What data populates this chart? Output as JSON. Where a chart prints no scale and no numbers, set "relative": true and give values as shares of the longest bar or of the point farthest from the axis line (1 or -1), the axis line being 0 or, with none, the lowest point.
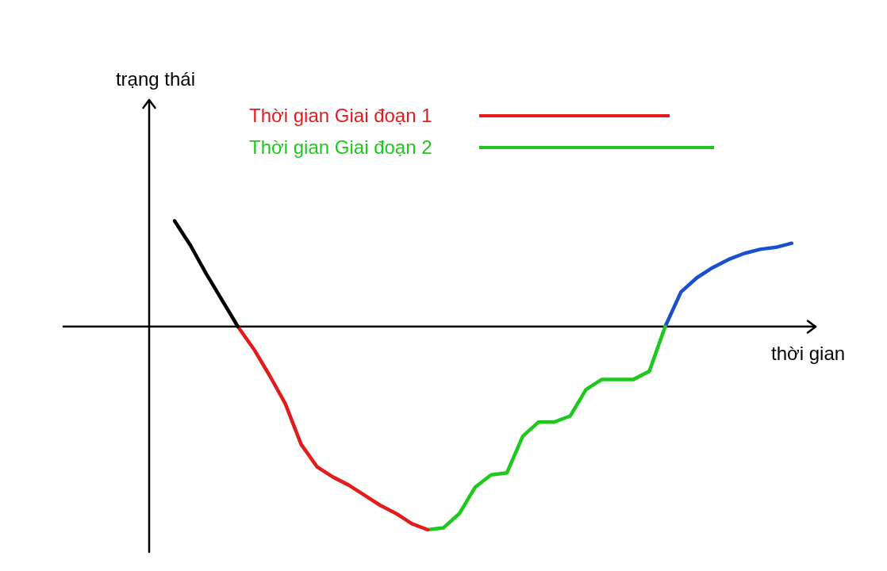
{
  "chart_data": {
    "type": "line",
    "relative": true,
    "xlabel": "thời gian",
    "annotations": [
      "trạng thái"
    ],
    "legend": "top",
    "marker": "none",
    "categories": [
      null,
      null,
      null,
      null,
      null,
      null,
      null,
      null,
      null,
      null,
      null,
      null,
      null,
      null,
      null,
      null,
      null,
      null,
      null,
      null,
      null,
      null,
      null,
      null,
      null,
      null,
      null,
      null,
      null,
      null,
      null,
      null,
      null,
      null,
      null,
      null,
      null,
      null,
      null,
      null
    ],
    "series": [
      {
        "color": "#000000",
        "values": [
          0.52,
          0.4,
          0.26,
          0.13,
          0,
          null,
          null,
          null,
          null,
          null,
          null,
          null,
          null,
          null,
          null,
          null,
          null,
          null,
          null,
          null,
          null,
          null,
          null,
          null,
          null,
          null,
          null,
          null,
          null,
          null,
          null,
          null,
          null,
          null,
          null,
          null,
          null,
          null,
          null,
          null
        ]
      },
      {
        "name": "Thời gian Giai đoạn 1",
        "color": "#e31b1b",
        "values": [
          null,
          null,
          null,
          null,
          0,
          -0.11,
          -0.24,
          -0.38,
          -0.58,
          -0.69,
          -0.74,
          -0.78,
          -0.83,
          -0.88,
          -0.92,
          -0.97,
          -1,
          null,
          null,
          null,
          null,
          null,
          null,
          null,
          null,
          null,
          null,
          null,
          null,
          null,
          null,
          null,
          null,
          null,
          null,
          null,
          null,
          null,
          null,
          null
        ]
      },
      {
        "name": "Thời gian Giai đoạn 2",
        "color": "#1ec81e",
        "values": [
          null,
          null,
          null,
          null,
          null,
          null,
          null,
          null,
          null,
          null,
          null,
          null,
          null,
          null,
          null,
          null,
          -1,
          -0.99,
          -0.92,
          -0.79,
          -0.73,
          -0.72,
          -0.54,
          -0.47,
          -0.47,
          -0.44,
          -0.31,
          -0.26,
          -0.26,
          -0.26,
          -0.22,
          0,
          null,
          null,
          null,
          null,
          null,
          null,
          null,
          null
        ]
      },
      {
        "color": "#1a4fd0",
        "values": [
          null,
          null,
          null,
          null,
          null,
          null,
          null,
          null,
          null,
          null,
          null,
          null,
          null,
          null,
          null,
          null,
          null,
          null,
          null,
          null,
          null,
          null,
          null,
          null,
          null,
          null,
          null,
          null,
          null,
          null,
          null,
          0,
          0.17,
          0.24,
          0.29,
          0.33,
          0.36,
          0.38,
          0.39,
          0.41
        ]
      }
    ]
  }
}
